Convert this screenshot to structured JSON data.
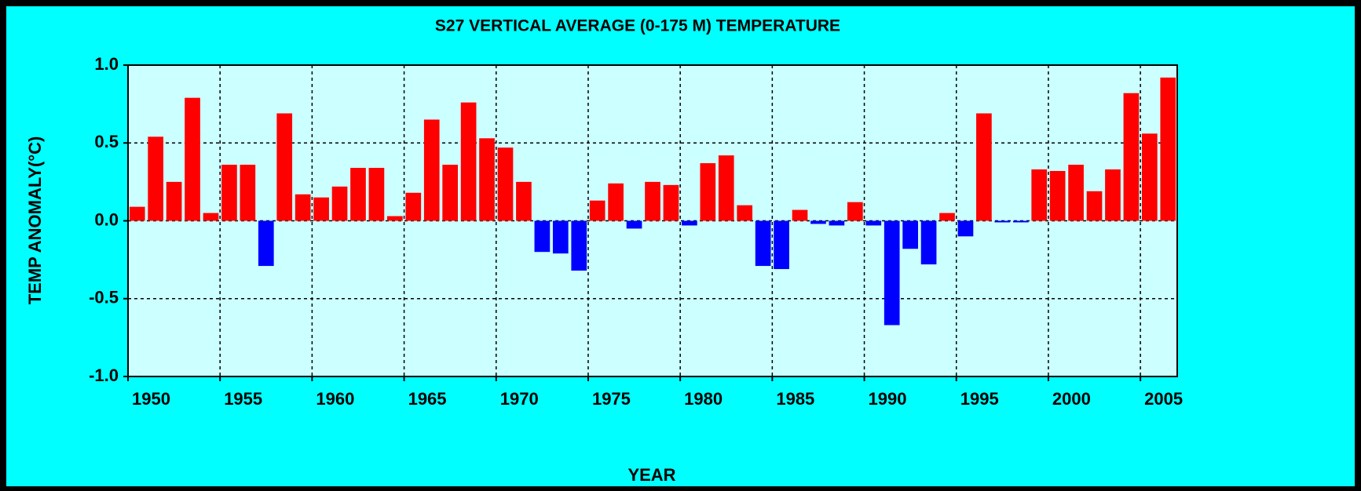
{
  "chart_data": {
    "type": "bar",
    "title": "S27 VERTICAL AVERAGE (0-175 M) TEMPERATURE",
    "xlabel": "YEAR",
    "ylabel": "TEMP ANOMALY(°C)",
    "x": [
      1950,
      1951,
      1952,
      1953,
      1954,
      1955,
      1956,
      1957,
      1958,
      1959,
      1960,
      1961,
      1962,
      1963,
      1964,
      1965,
      1966,
      1967,
      1968,
      1969,
      1970,
      1971,
      1972,
      1973,
      1974,
      1975,
      1976,
      1977,
      1978,
      1979,
      1980,
      1981,
      1982,
      1983,
      1984,
      1985,
      1986,
      1987,
      1988,
      1989,
      1990,
      1991,
      1992,
      1993,
      1994,
      1995,
      1996,
      1997,
      1998,
      1999,
      2000,
      2001,
      2002,
      2003,
      2004,
      2005,
      2006
    ],
    "values": [
      0.09,
      0.54,
      0.25,
      0.79,
      0.05,
      0.36,
      0.36,
      -0.29,
      0.69,
      0.17,
      0.15,
      0.22,
      0.34,
      0.34,
      0.03,
      0.18,
      0.65,
      0.36,
      0.76,
      0.53,
      0.47,
      0.25,
      -0.2,
      -0.21,
      -0.32,
      0.13,
      0.24,
      -0.05,
      0.25,
      0.23,
      -0.03,
      0.37,
      0.42,
      0.1,
      -0.29,
      -0.31,
      0.07,
      -0.02,
      -0.03,
      0.12,
      -0.03,
      -0.67,
      -0.18,
      -0.28,
      0.05,
      -0.1,
      0.69,
      -0.01,
      -0.01,
      0.33,
      0.32,
      0.36,
      0.19,
      0.33,
      0.82,
      0.56,
      0.92
    ],
    "colors": {
      "positive": "#ff0000",
      "negative": "#0000ff"
    },
    "xlim": [
      1950,
      2007
    ],
    "xticks": [
      1950,
      1955,
      1960,
      1965,
      1970,
      1975,
      1980,
      1985,
      1990,
      1995,
      2000,
      2005
    ],
    "ylim": [
      -1,
      1
    ],
    "yticks": [
      {
        "value": -1,
        "label": "-1.0"
      },
      -0.5,
      {
        "value": 0,
        "label": "0.0"
      },
      0.5,
      {
        "value": 1,
        "label": "1.0"
      }
    ],
    "grid": true
  }
}
